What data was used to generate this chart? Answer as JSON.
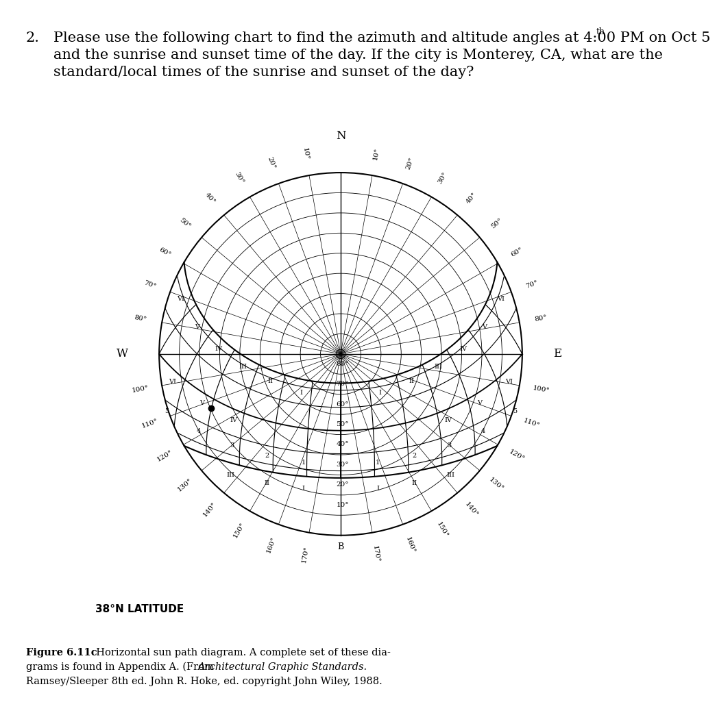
{
  "bg_color": "#ffffff",
  "line_color": "#000000",
  "latitude_label": "38°N LATITUDE",
  "fig_caption_bold": "Figure 6.11c",
  "fig_caption_normal": "  Horizontal sun path diagram. A complete set of these dia-",
  "fig_caption_line2_pre": "grams is found in Appendix A. (From ",
  "fig_caption_line2_italic": "Architectural Graphic Standards.",
  "fig_caption_line3": "Ramsey/Sleeper 8th ed. John R. Hoke, ed. copyright John Wiley, 1988.",
  "question_num": "2.",
  "question_line1": "Please use the following chart to find the azimuth and altitude angles at 4:00 PM on Oct 5",
  "question_line1_sup": "th",
  "question_line2": "and the sunrise and sunset time of the day. If the city is Monterey, CA, what are the",
  "question_line3": "standard/local times of the sunrise and sunset of the day?",
  "latitude_deg": 38,
  "date_curves_decl": [
    23.5,
    20.0,
    11.5,
    0.0,
    -11.5,
    -20.0,
    -23.5
  ],
  "date_curves_lw": [
    1.5,
    0.8,
    0.8,
    1.3,
    0.8,
    0.8,
    1.5
  ],
  "hour_angles_deg": [
    -90,
    -75,
    -60,
    -45,
    -30,
    -15,
    0,
    15,
    30,
    45,
    60,
    75,
    90
  ],
  "altitude_rings": [
    10,
    20,
    30,
    40,
    50,
    60,
    70,
    80
  ],
  "azimuth_spokes_deg": [
    0,
    10,
    20,
    30,
    40,
    50,
    60,
    70,
    80,
    90,
    100,
    110,
    120,
    130,
    140,
    150,
    160,
    170,
    180,
    190,
    200,
    210,
    220,
    230,
    240,
    250,
    260,
    270,
    280,
    290,
    300,
    310,
    320,
    330,
    340,
    350
  ],
  "rim_labels": [
    10,
    20,
    30,
    40,
    50,
    60,
    70,
    80,
    100,
    110,
    120,
    130,
    140,
    150,
    160,
    170
  ],
  "dot_ha_deg": 60,
  "dot_decl_deg": -4
}
